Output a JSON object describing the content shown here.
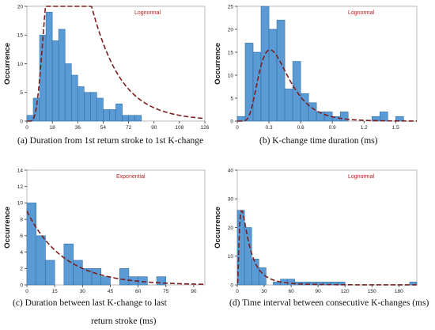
{
  "colors": {
    "bar": "#5b9bd5",
    "bar_edge": "#2f6ea8",
    "curve": "#7a1f1f",
    "fit_label": "#b22222",
    "axis": "#333333"
  },
  "chart_data": [
    {
      "type": "bar",
      "caption": "(a) Duration from 1st return stroke to 1st K-change",
      "caption_line2": "",
      "fit_label": "Lognormal",
      "ylabel": "Occurrence",
      "xlabel": "",
      "xlim": [
        0,
        126
      ],
      "ylim": [
        0,
        20
      ],
      "xticks": [
        0,
        18,
        36,
        54,
        72,
        90,
        108,
        126
      ],
      "yticks": [
        0,
        5,
        10,
        15,
        20
      ],
      "bin_width": 4.5,
      "bin_start": 0,
      "values": [
        1,
        4,
        15,
        19,
        14,
        16,
        10,
        8,
        6,
        5,
        5,
        4,
        2,
        2,
        3,
        1,
        1,
        1
      ],
      "curve": {
        "dist": "lognormal",
        "mu": 3.5,
        "sigma": 0.55,
        "scale": 1500
      }
    },
    {
      "type": "bar",
      "caption": "(b) K-change time duration (ms)",
      "caption_line2": "",
      "fit_label": "Lognormal",
      "ylabel": "Occurrence",
      "xlabel": "",
      "xlim": [
        0,
        1.7
      ],
      "ylim": [
        0,
        25
      ],
      "xticks": [
        0,
        0.3,
        0.6,
        0.9,
        1.2,
        1.5
      ],
      "yticks": [
        0,
        5,
        10,
        15,
        20,
        25
      ],
      "bin_width": 0.075,
      "bin_start": 0,
      "values": [
        1,
        17,
        15,
        25,
        20,
        22,
        7,
        13,
        6,
        4,
        2,
        2,
        1,
        2,
        0,
        0,
        0,
        1,
        2,
        0,
        1
      ],
      "curve": {
        "dist": "lognormal",
        "mu": -0.97,
        "sigma": 0.45,
        "scale": 6.0
      }
    },
    {
      "type": "bar",
      "caption": "(c) Duration between last K-change to last",
      "caption_line2": "return stroke (ms)",
      "fit_label": "Exponential",
      "ylabel": "Occurrence",
      "xlabel": "",
      "xlim": [
        0,
        96
      ],
      "ylim": [
        0,
        14
      ],
      "xticks": [
        0,
        15,
        30,
        45,
        60,
        75,
        90
      ],
      "yticks": [
        0,
        2,
        4,
        6,
        8,
        10,
        12,
        14
      ],
      "bin_width": 5,
      "bin_start": 0,
      "values": [
        10,
        6,
        3,
        0,
        5,
        3,
        2,
        2,
        1,
        0,
        2,
        1,
        1,
        0,
        1,
        0,
        0,
        0,
        0
      ],
      "curve": {
        "dist": "exponential",
        "lambda": 0.05,
        "scale": 180
      }
    },
    {
      "type": "bar",
      "caption": "(d) Time interval between consecutive K-changes (ms)",
      "caption_line2": "",
      "fit_label": "Lognormal",
      "ylabel": "Occurrence",
      "xlabel": "",
      "xlim": [
        0,
        200
      ],
      "ylim": [
        0,
        40
      ],
      "xticks": [
        0,
        30,
        60,
        90,
        120,
        150,
        180
      ],
      "yticks": [
        0,
        10,
        20,
        30,
        40
      ],
      "bin_width": 8,
      "bin_start": 0,
      "values": [
        26,
        20,
        9,
        6,
        0,
        1,
        2,
        2,
        1,
        1,
        1,
        1,
        1,
        1,
        1,
        0,
        0,
        0,
        0,
        0,
        0,
        0,
        0,
        0,
        1
      ],
      "curve": {
        "dist": "lognormal",
        "mu": 2.4,
        "sigma": 0.9,
        "scale": 430
      }
    }
  ]
}
